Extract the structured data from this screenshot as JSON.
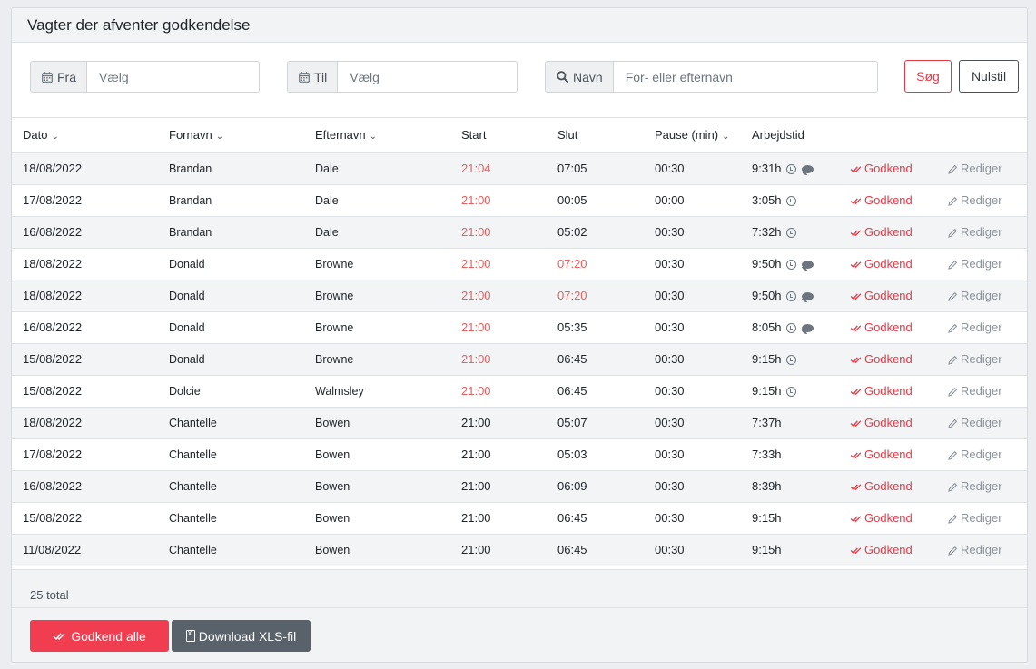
{
  "header": {
    "title": "Vagter der afventer godkendelse"
  },
  "filters": {
    "from": {
      "label": "Fra",
      "placeholder": "Vælg"
    },
    "to": {
      "label": "Til",
      "placeholder": "Vælg"
    },
    "name": {
      "label": "Navn",
      "placeholder": "For- eller efternavn"
    },
    "search_label": "Søg",
    "reset_label": "Nulstil"
  },
  "table": {
    "columns": {
      "date": "Dato",
      "firstname": "Fornavn",
      "lastname": "Efternavn",
      "start": "Start",
      "end": "Slut",
      "pause": "Pause (min)",
      "worktime": "Arbejdstid"
    },
    "approve_label": "Godkend",
    "edit_label": "Rediger",
    "rows": [
      {
        "date": "18/08/2022",
        "firstname": "Brandan",
        "lastname": "Dale",
        "start": "21:04",
        "end": "07:05",
        "pause": "00:30",
        "worktime": "9:31h",
        "start_late": true,
        "end_late": false,
        "clock": true,
        "comment": true
      },
      {
        "date": "17/08/2022",
        "firstname": "Brandan",
        "lastname": "Dale",
        "start": "21:00",
        "end": "00:05",
        "pause": "00:00",
        "worktime": "3:05h",
        "start_late": true,
        "end_late": false,
        "clock": true,
        "comment": false
      },
      {
        "date": "16/08/2022",
        "firstname": "Brandan",
        "lastname": "Dale",
        "start": "21:00",
        "end": "05:02",
        "pause": "00:30",
        "worktime": "7:32h",
        "start_late": true,
        "end_late": false,
        "clock": true,
        "comment": false
      },
      {
        "date": "18/08/2022",
        "firstname": "Donald",
        "lastname": "Browne",
        "start": "21:00",
        "end": "07:20",
        "pause": "00:30",
        "worktime": "9:50h",
        "start_late": true,
        "end_late": true,
        "clock": true,
        "comment": true
      },
      {
        "date": "18/08/2022",
        "firstname": "Donald",
        "lastname": "Browne",
        "start": "21:00",
        "end": "07:20",
        "pause": "00:30",
        "worktime": "9:50h",
        "start_late": true,
        "end_late": true,
        "clock": true,
        "comment": true
      },
      {
        "date": "16/08/2022",
        "firstname": "Donald",
        "lastname": "Browne",
        "start": "21:00",
        "end": "05:35",
        "pause": "00:30",
        "worktime": "8:05h",
        "start_late": true,
        "end_late": false,
        "clock": true,
        "comment": true
      },
      {
        "date": "15/08/2022",
        "firstname": "Donald",
        "lastname": "Browne",
        "start": "21:00",
        "end": "06:45",
        "pause": "00:30",
        "worktime": "9:15h",
        "start_late": true,
        "end_late": false,
        "clock": true,
        "comment": false
      },
      {
        "date": "15/08/2022",
        "firstname": "Dolcie",
        "lastname": "Walmsley",
        "start": "21:00",
        "end": "06:45",
        "pause": "00:30",
        "worktime": "9:15h",
        "start_late": true,
        "end_late": false,
        "clock": true,
        "comment": false
      },
      {
        "date": "18/08/2022",
        "firstname": "Chantelle",
        "lastname": "Bowen",
        "start": "21:00",
        "end": "05:07",
        "pause": "00:30",
        "worktime": "7:37h",
        "start_late": false,
        "end_late": false,
        "clock": false,
        "comment": false
      },
      {
        "date": "17/08/2022",
        "firstname": "Chantelle",
        "lastname": "Bowen",
        "start": "21:00",
        "end": "05:03",
        "pause": "00:30",
        "worktime": "7:33h",
        "start_late": false,
        "end_late": false,
        "clock": false,
        "comment": false
      },
      {
        "date": "16/08/2022",
        "firstname": "Chantelle",
        "lastname": "Bowen",
        "start": "21:00",
        "end": "06:09",
        "pause": "00:30",
        "worktime": "8:39h",
        "start_late": false,
        "end_late": false,
        "clock": false,
        "comment": false
      },
      {
        "date": "15/08/2022",
        "firstname": "Chantelle",
        "lastname": "Bowen",
        "start": "21:00",
        "end": "06:45",
        "pause": "00:30",
        "worktime": "9:15h",
        "start_late": false,
        "end_late": false,
        "clock": false,
        "comment": false
      },
      {
        "date": "11/08/2022",
        "firstname": "Chantelle",
        "lastname": "Bowen",
        "start": "21:00",
        "end": "06:45",
        "pause": "00:30",
        "worktime": "9:15h",
        "start_late": false,
        "end_late": false,
        "clock": false,
        "comment": false
      }
    ]
  },
  "footer": {
    "total_label": "25 total",
    "approve_all_label": "Godkend alle",
    "download_label": "Download XLS-fil"
  },
  "colors": {
    "accent": "#e63946",
    "late": "#ec5d5d",
    "secondary": "#59616a"
  }
}
